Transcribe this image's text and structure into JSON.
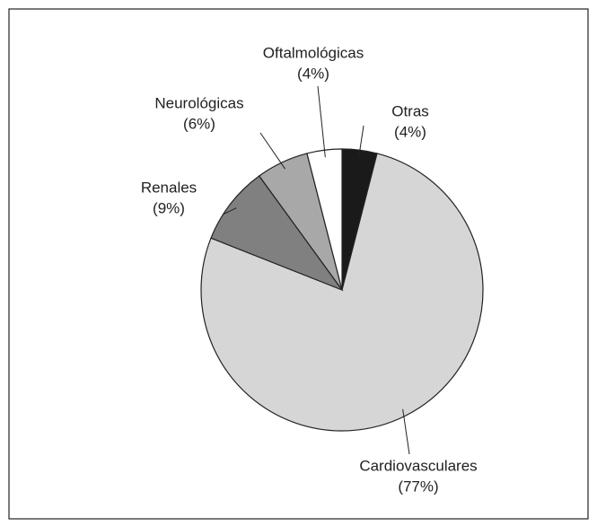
{
  "chart_data": {
    "type": "pie",
    "categories": [
      "Otras",
      "Cardiovasculares",
      "Renales",
      "Neurológicas",
      "Oftalmológicas"
    ],
    "values": [
      4,
      77,
      9,
      6,
      4
    ],
    "value_labels": [
      "(4%)",
      "(77%)",
      "(9%)",
      "(6%)",
      "(4%)"
    ],
    "colors": [
      "#1a1a1a",
      "#d6d6d6",
      "#808080",
      "#a8a8a8",
      "#ffffff"
    ]
  }
}
